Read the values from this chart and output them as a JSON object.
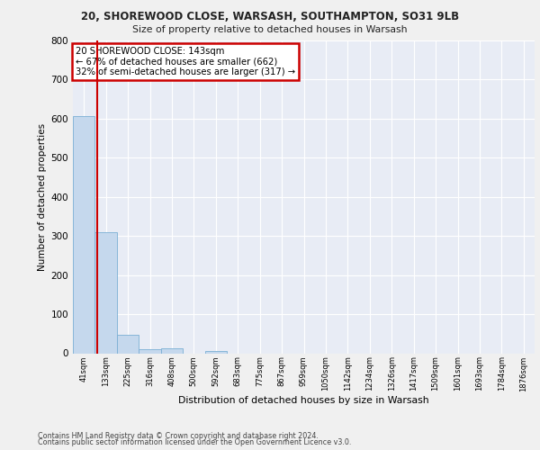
{
  "title1": "20, SHOREWOOD CLOSE, WARSASH, SOUTHAMPTON, SO31 9LB",
  "title2": "Size of property relative to detached houses in Warsash",
  "xlabel": "Distribution of detached houses by size in Warsash",
  "ylabel": "Number of detached properties",
  "footer1": "Contains HM Land Registry data © Crown copyright and database right 2024.",
  "footer2": "Contains public sector information licensed under the Open Government Licence v3.0.",
  "bin_labels": [
    "41sqm",
    "133sqm",
    "225sqm",
    "316sqm",
    "408sqm",
    "500sqm",
    "592sqm",
    "683sqm",
    "775sqm",
    "867sqm",
    "959sqm",
    "1050sqm",
    "1142sqm",
    "1234sqm",
    "1326sqm",
    "1417sqm",
    "1509sqm",
    "1601sqm",
    "1693sqm",
    "1784sqm",
    "1876sqm"
  ],
  "bar_heights": [
    606,
    310,
    48,
    11,
    13,
    0,
    5,
    0,
    0,
    0,
    0,
    0,
    0,
    0,
    0,
    0,
    0,
    0,
    0,
    0,
    0
  ],
  "bar_color": "#c5d8ed",
  "bar_edge_color": "#7bafd4",
  "background_color": "#e8ecf5",
  "grid_color": "#ffffff",
  "annotation_text": "20 SHOREWOOD CLOSE: 143sqm\n← 67% of detached houses are smaller (662)\n32% of semi-detached houses are larger (317) →",
  "annotation_box_color": "#ffffff",
  "annotation_box_edge_color": "#cc0000",
  "vline_color": "#cc0000",
  "ylim": [
    0,
    800
  ],
  "yticks": [
    0,
    100,
    200,
    300,
    400,
    500,
    600,
    700,
    800
  ],
  "fig_bg": "#f0f0f0"
}
